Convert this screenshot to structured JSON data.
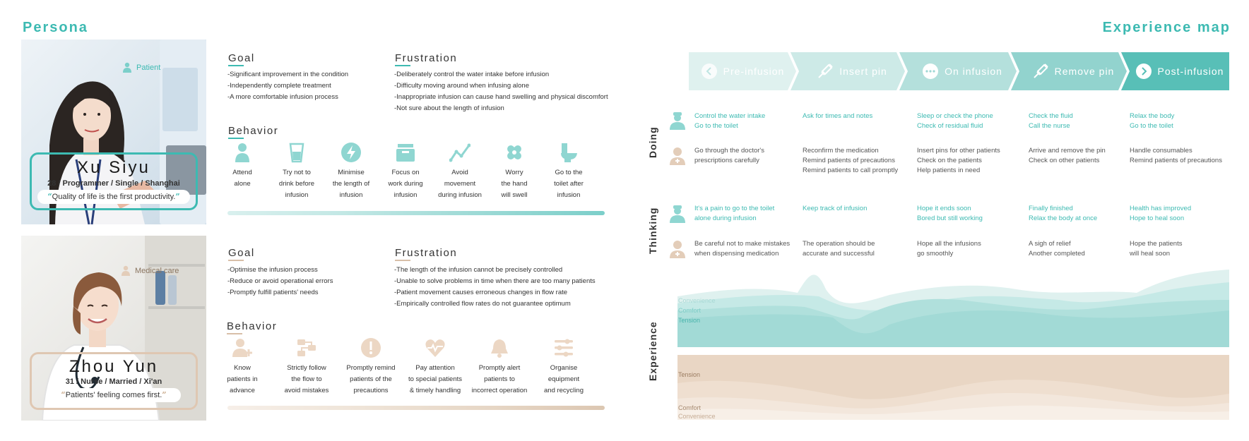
{
  "headings": {
    "persona": "Persona",
    "experience_map": "Experience map"
  },
  "colors": {
    "teal": "#3dbab2",
    "beige": "#d8bfa8"
  },
  "personas": [
    {
      "role": "Patient",
      "name": "Xu Siyu",
      "meta": "28 / Programmer / Single / Shanghai",
      "quote": "Quality of life is the first productivity.",
      "goal_title": "Goal",
      "goals": [
        "-Significant improvement in the condition",
        "-Independently complete treatment",
        "-A more comfortable infusion process"
      ],
      "frustration_title": "Frustration",
      "frustrations": [
        "-Deliberately control the water intake before infusion",
        "-Difficulty moving around when infusing alone",
        "-Inappropriate infusion can cause hand swelling and physical discomfort",
        "-Not sure about the length of infusion"
      ],
      "behavior_title": "Behavior",
      "behaviors": [
        {
          "icon": "person-icon",
          "lines": [
            "Attend",
            "alone"
          ]
        },
        {
          "icon": "cup-icon",
          "lines": [
            "Try not to",
            "drink before",
            "infusion"
          ]
        },
        {
          "icon": "lightning-icon",
          "lines": [
            "Minimise",
            "the length of",
            "infusion"
          ]
        },
        {
          "icon": "box-icon",
          "lines": [
            "Focus on",
            "work during",
            "infusion"
          ]
        },
        {
          "icon": "trend-icon",
          "lines": [
            "Avoid",
            "movement",
            "during infusion"
          ]
        },
        {
          "icon": "bandage-icon",
          "lines": [
            "Worry",
            "the hand",
            "will swell"
          ]
        },
        {
          "icon": "toilet-icon",
          "lines": [
            "Go to the",
            "toilet after",
            "infusion"
          ]
        }
      ]
    },
    {
      "role": "Medical care",
      "name": "Zhou Yun",
      "meta": "31 / Nurse / Married / Xi'an",
      "quote": "Patients' feeling comes first.",
      "goal_title": "Goal",
      "goals": [
        "-Optimise the infusion process",
        "-Reduce or avoid operational errors",
        "-Promptly fulfill patients' needs"
      ],
      "frustration_title": "Frustration",
      "frustrations": [
        "-The length of the infusion cannot be precisely controlled",
        "-Unable to solve problems in time when there are too many patients",
        "-Patient movement causes erroneous changes in flow rate",
        "-Empirically controlled flow rates do not guarantee optimum"
      ],
      "behavior_title": "Behavior",
      "behaviors": [
        {
          "icon": "user-plus-icon",
          "lines": [
            "Know",
            "patients in",
            "advance"
          ]
        },
        {
          "icon": "flow-icon",
          "lines": [
            "Strictly follow",
            "the flow to",
            "avoid mistakes"
          ]
        },
        {
          "icon": "alert-icon",
          "lines": [
            "Promptly remind",
            "patients of the",
            "precautions"
          ]
        },
        {
          "icon": "heartbeat-icon",
          "lines": [
            "Pay attention",
            "to special patients",
            "& timely handling"
          ]
        },
        {
          "icon": "bell-icon",
          "lines": [
            "Promptly alert",
            "patients to",
            "incorrect operation"
          ]
        },
        {
          "icon": "sliders-icon",
          "lines": [
            "Organise",
            "equipment",
            "and recycling"
          ]
        }
      ]
    }
  ],
  "stages": [
    {
      "label": "Pre-infusion",
      "icon": "chevron-left-icon"
    },
    {
      "label": "Insert pin",
      "icon": "syringe-icon"
    },
    {
      "label": "On infusion",
      "icon": "dots-icon"
    },
    {
      "label": "Remove pin",
      "icon": "syringe-icon"
    },
    {
      "label": "Post-infusion",
      "icon": "chevron-right-icon"
    }
  ],
  "rows": {
    "doing": "Doing",
    "thinking": "Thinking",
    "experience": "Experience"
  },
  "doing": {
    "patient": [
      [
        "Control the water intake",
        "Go to the toilet"
      ],
      [
        "Ask for times and notes"
      ],
      [
        "Sleep or check the phone",
        "Check of residual fluid"
      ],
      [
        "Check the fluid",
        "Call the nurse"
      ],
      [
        "Relax the body",
        "Go to the toilet"
      ]
    ],
    "medical": [
      [
        "Go through the doctor's",
        "prescriptions carefully"
      ],
      [
        "Reconfirm the medication",
        "Remind patients of precautions",
        "Remind patients to call promptly"
      ],
      [
        "Insert pins for other patients",
        "Check on the patients",
        "Help patients in need"
      ],
      [
        "Arrive and remove the pin",
        "Check on other patients"
      ],
      [
        "Handle consumables",
        "Remind patients of precautions"
      ]
    ]
  },
  "thinking": {
    "patient": [
      [
        "It's a pain to go to the toilet",
        "alone during infusion"
      ],
      [
        "Keep track of infusion"
      ],
      [
        "Hope it ends soon",
        "Bored but still working"
      ],
      [
        "Finally finished",
        "Relax the body at once"
      ],
      [
        "Health has improved",
        "Hope to heal soon"
      ]
    ],
    "medical": [
      [
        "Be careful not to make mistakes",
        "when dispensing medication"
      ],
      [
        "The operation should be",
        "accurate and successful"
      ],
      [
        "Hope all the infusions",
        "go smoothly"
      ],
      [
        "A sigh of relief",
        "Another completed"
      ],
      [
        "Hope the patients",
        "will heal soon"
      ]
    ]
  },
  "experience": {
    "patient_levels": [
      "Convenience",
      "Comfort",
      "Tension"
    ],
    "medical_levels": [
      "Tension",
      "Comfort",
      "Convenience"
    ]
  }
}
